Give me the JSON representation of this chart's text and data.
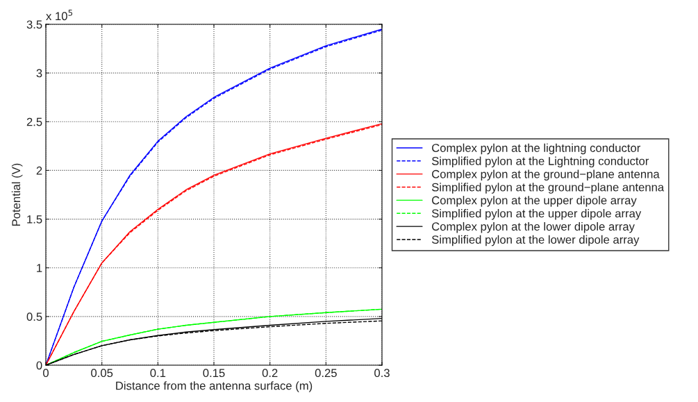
{
  "chart_data": {
    "type": "line",
    "xlabel": "Distance from the antenna surface (m)",
    "ylabel": "Potential (V)",
    "annotations": [
      "x 10$^{5}$"
    ],
    "xlim": [
      0,
      0.3
    ],
    "xticks": [
      0,
      0.05,
      0.1,
      0.15,
      0.2,
      0.25,
      0.3
    ],
    "ylim": [
      0,
      3.5
    ],
    "yticks": [
      0,
      0.5,
      1,
      1.5,
      2,
      2.5,
      3,
      3.5
    ],
    "grid": true,
    "legend": "right",
    "x": [
      0,
      0.025,
      0.05,
      0.075,
      0.1,
      0.125,
      0.15,
      0.2,
      0.25,
      0.3
    ],
    "series": [
      {
        "name": "Complex pylon at the lightning conductor",
        "color": "#0000ff",
        "line_style": "solid",
        "values": [
          0,
          0.8,
          1.48,
          1.95,
          2.3,
          2.55,
          2.75,
          3.05,
          3.28,
          3.45
        ]
      },
      {
        "name": "Simplified pylon at the Lightning conductor",
        "color": "#0000ff",
        "line_style": "dashed",
        "values": [
          0,
          0.8,
          1.48,
          1.94,
          2.29,
          2.54,
          2.74,
          3.04,
          3.27,
          3.44
        ]
      },
      {
        "name": "Complex pylon at the ground−plane antenna",
        "color": "#ff0000",
        "line_style": "solid",
        "values": [
          0,
          0.55,
          1.05,
          1.37,
          1.6,
          1.8,
          1.95,
          2.17,
          2.33,
          2.48
        ]
      },
      {
        "name": "Simplified pylon at the ground−plane antenna",
        "color": "#ff0000",
        "line_style": "dashed",
        "values": [
          0,
          0.55,
          1.05,
          1.36,
          1.59,
          1.79,
          1.94,
          2.16,
          2.32,
          2.47
        ]
      },
      {
        "name": "Complex pylon at the upper dipole array",
        "color": "#00ff00",
        "line_style": "solid",
        "values": [
          0,
          0.13,
          0.245,
          0.31,
          0.37,
          0.41,
          0.44,
          0.5,
          0.54,
          0.575
        ]
      },
      {
        "name": "Simplified pylon at the upper dipole array",
        "color": "#00ff00",
        "line_style": "dashed",
        "values": [
          0,
          0.13,
          0.245,
          0.31,
          0.37,
          0.41,
          0.44,
          0.5,
          0.54,
          0.575
        ]
      },
      {
        "name": "Complex pylon at the lower dipole array",
        "color": "#000000",
        "line_style": "solid",
        "values": [
          0,
          0.11,
          0.2,
          0.26,
          0.305,
          0.34,
          0.365,
          0.41,
          0.45,
          0.48
        ]
      },
      {
        "name": "Simplified pylon at the lower dipole array",
        "color": "#000000",
        "line_style": "dashed",
        "values": [
          0,
          0.11,
          0.2,
          0.26,
          0.3,
          0.33,
          0.355,
          0.395,
          0.43,
          0.455
        ]
      }
    ]
  }
}
